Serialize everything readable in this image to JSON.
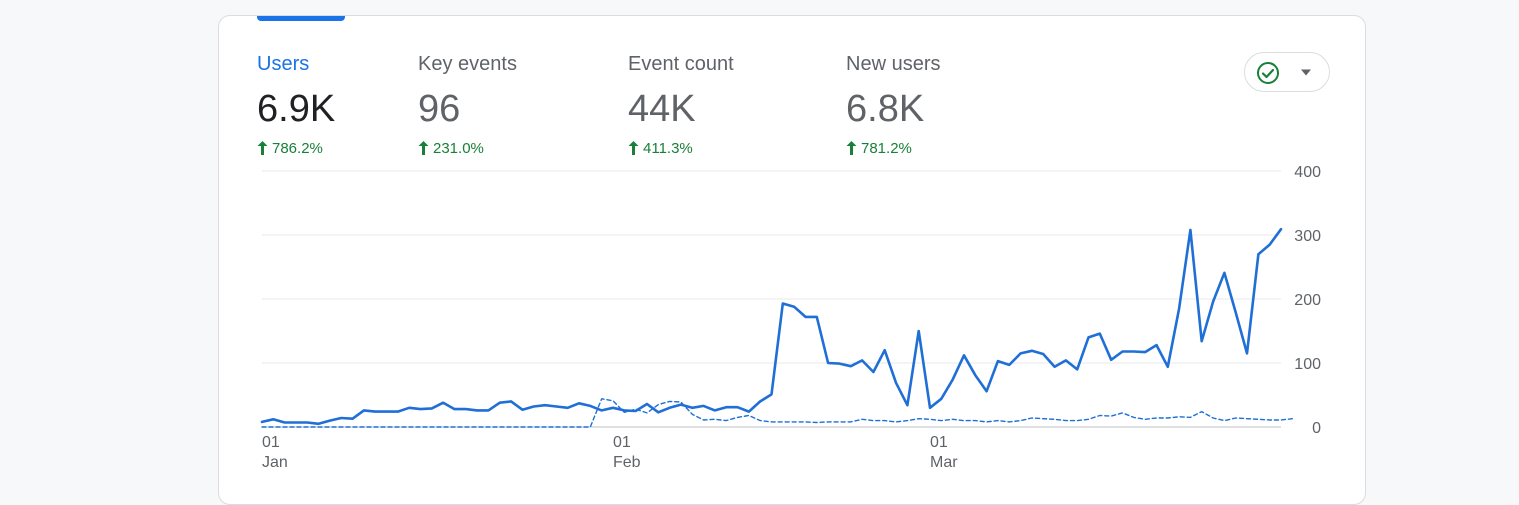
{
  "metrics": [
    {
      "label": "Users",
      "value": "6.9K",
      "change": "786.2%",
      "active": true
    },
    {
      "label": "Key events",
      "value": "96",
      "change": "231.0%",
      "active": false
    },
    {
      "label": "Event count",
      "value": "44K",
      "change": "411.3%",
      "active": false
    },
    {
      "label": "New users",
      "value": "6.8K",
      "change": "781.2%",
      "active": false
    }
  ],
  "compare_button": {
    "icon": "check-circle-icon",
    "dropdown_icon": "caret-down-icon"
  },
  "colors": {
    "accent": "#1a73e8",
    "series": "#1f6fd6",
    "positive": "#188038",
    "grid": "#e8eaed",
    "text": "#5f6368"
  },
  "chart_data": {
    "type": "line",
    "title": "",
    "xlabel": "",
    "ylabel": "",
    "ylim": [
      0,
      400
    ],
    "yticks": [
      0,
      100,
      200,
      300,
      400
    ],
    "y_axis_position": "right",
    "grid": true,
    "x_labels": [
      {
        "index": 0,
        "day": "01",
        "month": "Jan"
      },
      {
        "index": 31,
        "day": "01",
        "month": "Feb"
      },
      {
        "index": 59,
        "day": "01",
        "month": "Mar"
      }
    ],
    "series": [
      {
        "name": "",
        "style": "solid",
        "values": [
          8,
          12,
          7,
          7,
          7,
          5,
          10,
          14,
          13,
          26,
          24,
          24,
          24,
          30,
          28,
          29,
          38,
          28,
          28,
          26,
          26,
          38,
          40,
          27,
          32,
          34,
          32,
          30,
          37,
          33,
          26,
          30,
          26,
          25,
          36,
          23,
          30,
          35,
          30,
          33,
          26,
          31,
          31,
          24,
          40,
          51,
          193,
          188,
          172,
          172,
          100,
          99,
          95,
          104,
          86,
          120,
          69,
          34,
          150,
          30,
          44,
          74,
          112,
          81,
          56,
          103,
          97,
          115,
          119,
          114,
          94,
          104,
          90,
          140,
          146,
          105,
          118,
          118,
          117,
          128,
          94,
          185,
          308,
          134,
          196,
          241,
          179,
          115,
          270,
          285,
          309
        ]
      },
      {
        "name": "",
        "style": "dashed",
        "values": [
          0,
          0,
          0,
          0,
          0,
          0,
          0,
          0,
          0,
          0,
          0,
          0,
          0,
          0,
          0,
          0,
          0,
          0,
          0,
          0,
          0,
          0,
          0,
          0,
          0,
          0,
          0,
          0,
          0,
          0,
          44,
          41,
          23,
          28,
          22,
          35,
          40,
          39,
          20,
          11,
          12,
          10,
          15,
          18,
          10,
          8,
          8,
          8,
          8,
          7,
          8,
          8,
          8,
          12,
          10,
          10,
          8,
          10,
          13,
          12,
          10,
          12,
          10,
          10,
          8,
          10,
          8,
          10,
          14,
          13,
          12,
          10,
          10,
          12,
          18,
          17,
          22,
          15,
          12,
          14,
          14,
          16,
          15,
          24,
          14,
          10,
          14,
          13,
          12,
          11,
          11,
          13
        ]
      }
    ]
  }
}
